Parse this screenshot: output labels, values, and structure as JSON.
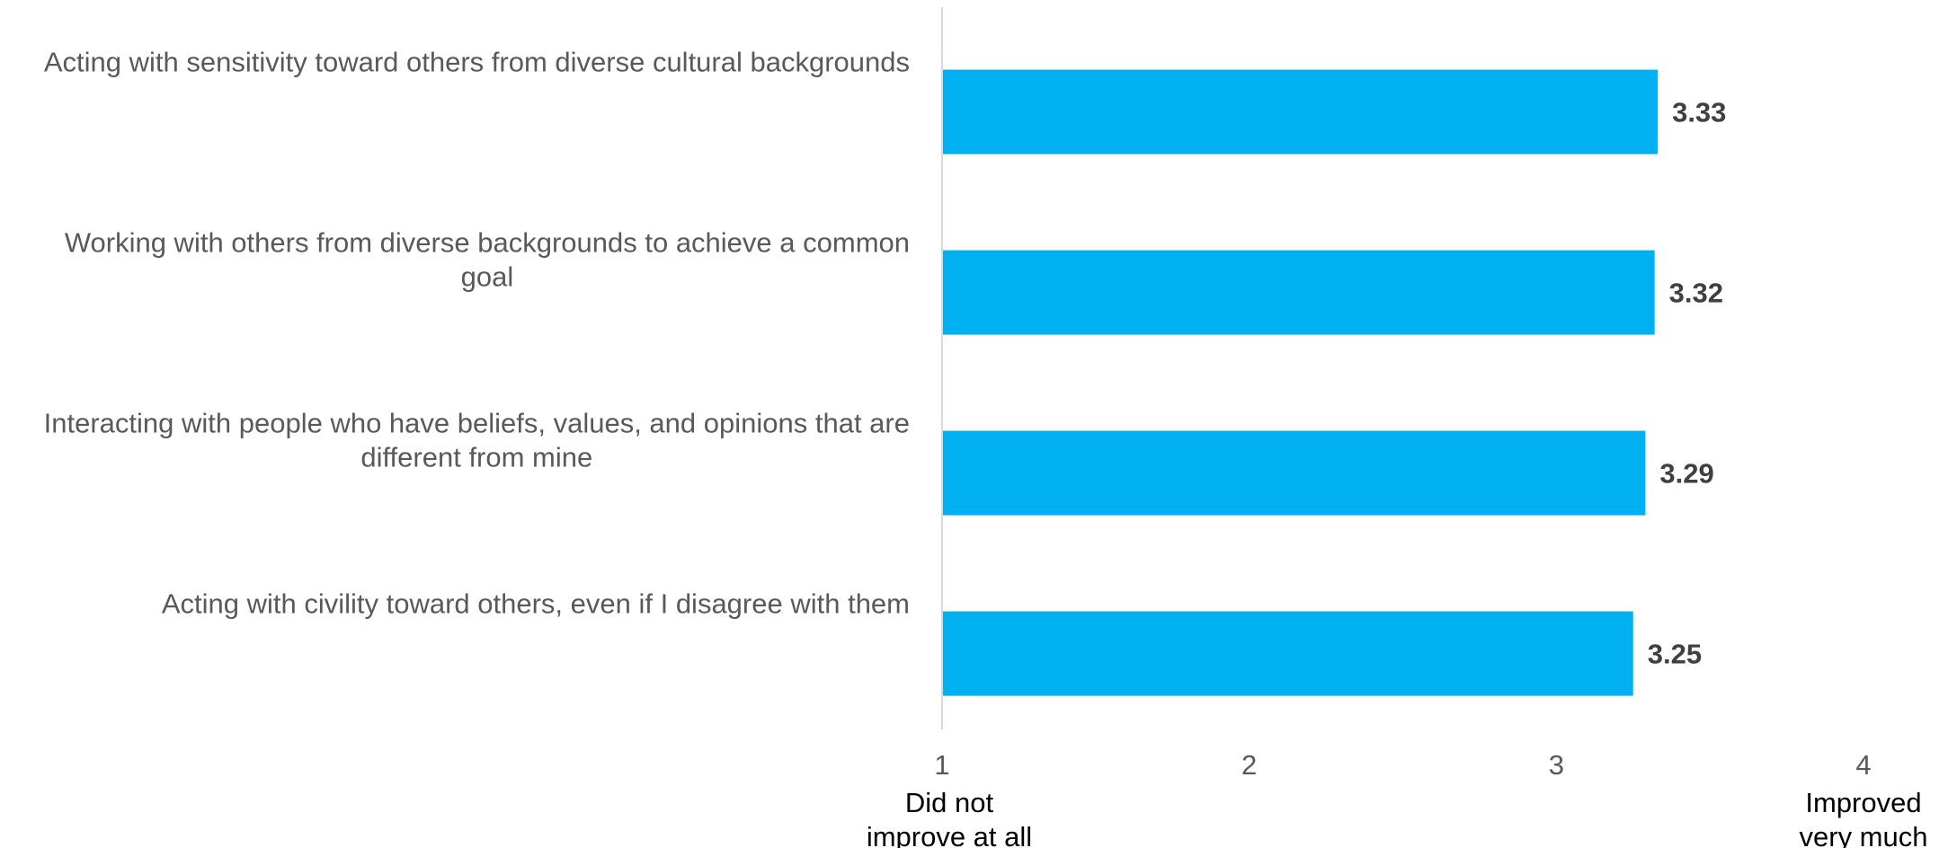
{
  "chart_data": {
    "type": "bar",
    "orientation": "horizontal",
    "categories": [
      [
        "Acting with sensitivity toward others from diverse cultural backgrounds"
      ],
      [
        "Working with others from diverse backgrounds to achieve a common",
        "goal"
      ],
      [
        "Interacting with people who have beliefs, values, and opinions that are",
        "different from mine"
      ],
      [
        "Acting with civility toward others, even if I disagree with them"
      ]
    ],
    "values": [
      3.33,
      3.32,
      3.29,
      3.25
    ],
    "data_labels": [
      "3.33",
      "3.32",
      "3.29",
      "3.25"
    ],
    "xlim": [
      1,
      4
    ],
    "xticks": [
      "1",
      "2",
      "3",
      "4"
    ],
    "scale_anchors": {
      "low": [
        "Did not",
        "improve at all"
      ],
      "high": [
        "Improved",
        "very much"
      ]
    },
    "title": "",
    "xlabel": "",
    "ylabel": "",
    "grid": false,
    "legend": "none",
    "colors": {
      "bar": "#00B0F0",
      "axis": "#D9D9D9",
      "category_text": "#595959",
      "tick_text": "#595959",
      "anchor_text": "#000000",
      "data_label_text": "#404040"
    }
  }
}
